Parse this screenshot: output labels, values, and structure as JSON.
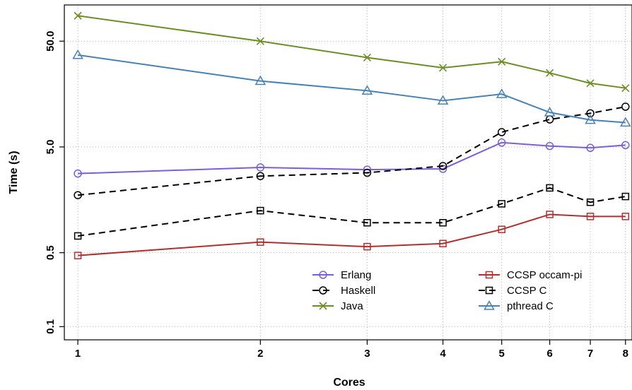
{
  "chart_data": {
    "type": "line",
    "xlabel": "Cores",
    "ylabel": "Time (s)",
    "x_scale": "log",
    "y_scale": "log",
    "x": [
      1,
      2,
      3,
      4,
      5,
      6,
      7,
      8
    ],
    "x_tick_labels": [
      "1",
      "2",
      "3",
      "4",
      "5",
      "6",
      "7",
      "8"
    ],
    "y_ticks": [
      0.1,
      0.5,
      5.0,
      50.0
    ],
    "y_tick_labels": [
      "0.1",
      "0.5",
      "5.0",
      "50.0"
    ],
    "xlim": [
      0.95,
      8.2
    ],
    "ylim": [
      0.075,
      110
    ],
    "grid": true,
    "legend_position": "bottom-right",
    "series": [
      {
        "name": "Erlang",
        "color": "#7b5fd6",
        "marker": "circle",
        "dash": "solid",
        "values": [
          2.8,
          3.2,
          3.05,
          3.1,
          5.5,
          5.1,
          4.9,
          5.2
        ]
      },
      {
        "name": "Haskell",
        "color": "#000000",
        "marker": "circle",
        "dash": "dashed",
        "values": [
          1.75,
          2.65,
          2.85,
          3.3,
          6.9,
          9.1,
          10.4,
          12.0
        ]
      },
      {
        "name": "Java",
        "color": "#6b8e23",
        "marker": "x",
        "dash": "solid",
        "values": [
          87,
          50,
          35,
          28,
          32,
          25,
          20,
          18
        ]
      },
      {
        "name": "CCSP occam-pi",
        "color": "#b03030",
        "marker": "square",
        "dash": "solid",
        "values": [
          0.47,
          0.63,
          0.57,
          0.61,
          0.83,
          1.15,
          1.1,
          1.1
        ]
      },
      {
        "name": "CCSP C",
        "color": "#000000",
        "marker": "square",
        "dash": "dashed",
        "values": [
          0.72,
          1.25,
          0.96,
          0.96,
          1.45,
          2.05,
          1.5,
          1.7
        ]
      },
      {
        "name": "pthread C",
        "color": "#4682b4",
        "marker": "triangle",
        "dash": "solid",
        "values": [
          37,
          21,
          17,
          13.7,
          15.8,
          10.6,
          9.0,
          8.5
        ]
      }
    ]
  }
}
